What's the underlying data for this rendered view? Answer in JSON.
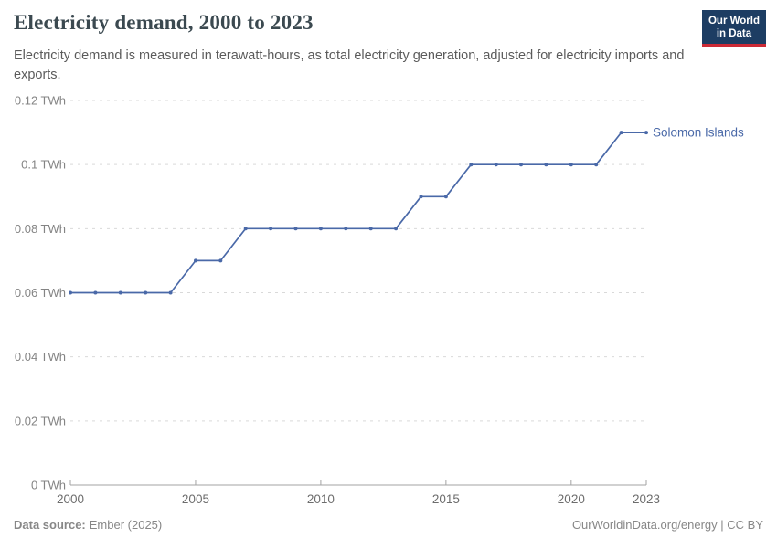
{
  "header": {
    "title": "Electricity demand, 2000 to 2023",
    "subtitle": "Electricity demand is measured in terawatt-hours, as total electricity generation, adjusted for electricity imports and exports.",
    "logo": {
      "line1": "Our World",
      "line2": "in Data"
    }
  },
  "chart_data": {
    "type": "line",
    "title": "Electricity demand, 2000 to 2023",
    "xlabel": "",
    "ylabel": "",
    "unit": "TWh",
    "xlim": [
      2000,
      2023
    ],
    "ylim": [
      0,
      0.12
    ],
    "grid": "horizontal-dashed",
    "legend_position": "end-of-line-label",
    "x_ticks": [
      {
        "value": 2000,
        "label": "2000"
      },
      {
        "value": 2005,
        "label": "2005"
      },
      {
        "value": 2010,
        "label": "2010"
      },
      {
        "value": 2015,
        "label": "2015"
      },
      {
        "value": 2020,
        "label": "2020"
      },
      {
        "value": 2023,
        "label": "2023"
      }
    ],
    "y_ticks": [
      {
        "value": 0,
        "label": "0 TWh"
      },
      {
        "value": 0.02,
        "label": "0.02 TWh"
      },
      {
        "value": 0.04,
        "label": "0.04 TWh"
      },
      {
        "value": 0.06,
        "label": "0.06 TWh"
      },
      {
        "value": 0.08,
        "label": "0.08 TWh"
      },
      {
        "value": 0.1,
        "label": "0.1 TWh"
      },
      {
        "value": 0.12,
        "label": "0.12 TWh"
      }
    ],
    "series": [
      {
        "name": "Solomon Islands",
        "color": "#4a69a8",
        "x": [
          2000,
          2001,
          2002,
          2003,
          2004,
          2005,
          2006,
          2007,
          2008,
          2009,
          2010,
          2011,
          2012,
          2013,
          2014,
          2015,
          2016,
          2017,
          2018,
          2019,
          2020,
          2021,
          2022,
          2023
        ],
        "values": [
          0.06,
          0.06,
          0.06,
          0.06,
          0.06,
          0.07,
          0.07,
          0.08,
          0.08,
          0.08,
          0.08,
          0.08,
          0.08,
          0.08,
          0.09,
          0.09,
          0.1,
          0.1,
          0.1,
          0.1,
          0.1,
          0.1,
          0.11,
          0.11
        ]
      }
    ]
  },
  "footer": {
    "datasource_label": "Data source:",
    "datasource_value": "Ember (2025)",
    "credit": "OurWorldinData.org/energy | CC BY"
  },
  "colors": {
    "grid": "#d9d9d9",
    "axis": "#a3a3a3",
    "y_label": "#848484",
    "x_label": "#6d6d6d"
  }
}
